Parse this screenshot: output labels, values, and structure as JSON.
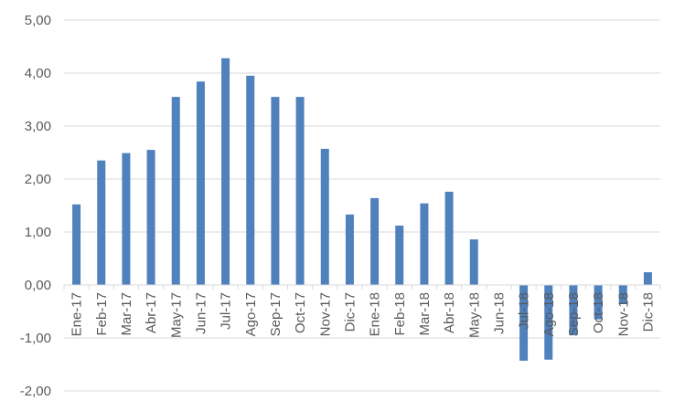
{
  "chart_data": {
    "type": "bar",
    "categories": [
      "Ene-17",
      "Feb-17",
      "Mar-17",
      "Abr-17",
      "May-17",
      "Jun-17",
      "Jul-17",
      "Ago-17",
      "Sep-17",
      "Oct-17",
      "Nov-17",
      "Dic-17",
      "Ene-18",
      "Feb-18",
      "Mar-18",
      "Abr-18",
      "May-18",
      "Jun-18",
      "Jul-18",
      "Ago-18",
      "Sep-18",
      "Oct-18",
      "Nov-18",
      "Dic-18"
    ],
    "values": [
      1.52,
      2.35,
      2.49,
      2.55,
      3.55,
      3.84,
      4.28,
      3.95,
      3.55,
      3.55,
      2.57,
      1.33,
      1.64,
      1.12,
      1.54,
      1.76,
      0.86,
      0.0,
      -1.43,
      -1.41,
      -0.95,
      -0.65,
      -0.35,
      0.24
    ],
    "ylim": [
      -2.0,
      5.0
    ],
    "yticks": [
      5.0,
      4.0,
      3.0,
      2.0,
      1.0,
      0.0,
      -1.0,
      -2.0
    ],
    "ytick_labels": [
      "5,00",
      "4,00",
      "3,00",
      "2,00",
      "1,00",
      "0,00",
      "-1,00",
      "-2,00"
    ],
    "title": "",
    "xlabel": "",
    "ylabel": "",
    "grid": true,
    "bar_color": "#4f81bd",
    "gridline_color": "#d9d9d9",
    "text_color": "#595959"
  }
}
